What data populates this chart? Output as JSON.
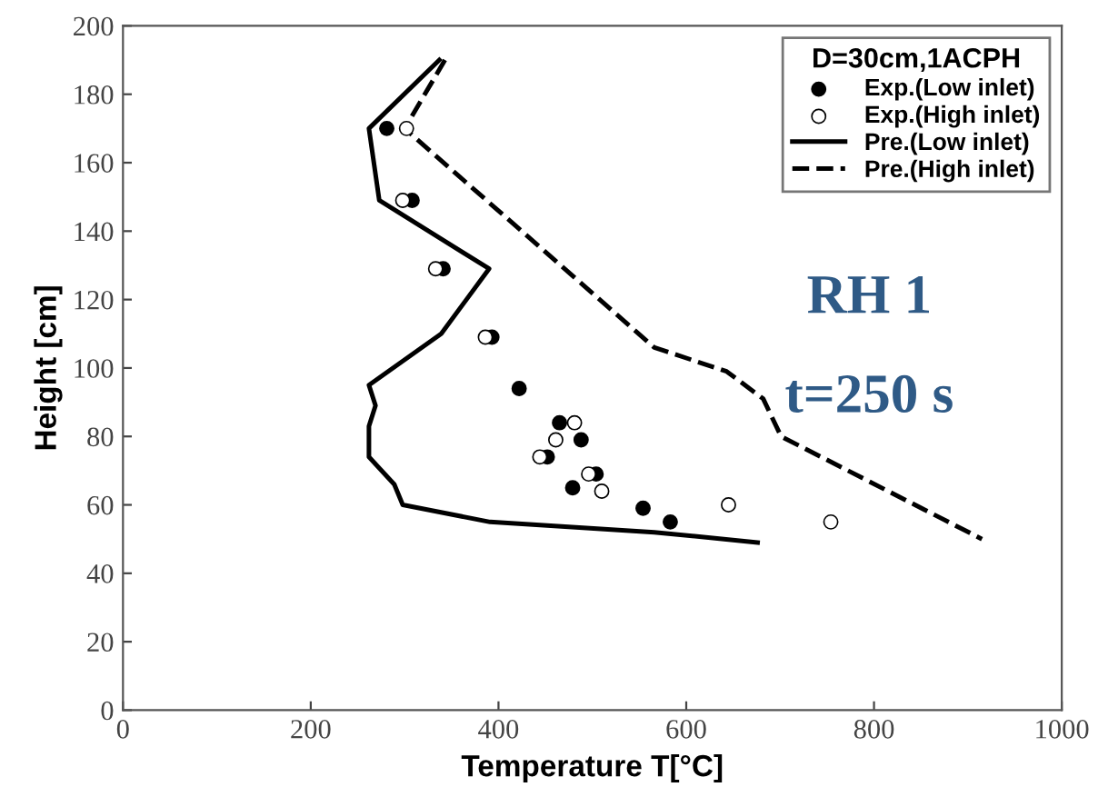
{
  "chart_data": {
    "type": "line",
    "xlabel": "Temperature T[°C]",
    "ylabel": "Height [cm]",
    "legend_title": "D=30cm,1ACPH",
    "legend": "top right",
    "xlim": [
      0,
      1000
    ],
    "ylim": [
      0,
      200
    ],
    "xticks": [
      0,
      200,
      400,
      600,
      800,
      1000
    ],
    "yticks": [
      0,
      20,
      40,
      60,
      80,
      100,
      120,
      140,
      160,
      180,
      200
    ],
    "grid": false,
    "series": [
      {
        "name": "Exp.(Low inlet)",
        "type": "scatter",
        "marker": "circle",
        "color": "#000000",
        "x": [
          281,
          308,
          341,
          393,
          422,
          465,
          488,
          452,
          504,
          479,
          554,
          583
        ],
        "values": [
          170,
          149,
          129,
          109,
          94,
          84,
          79,
          74,
          69,
          65,
          59,
          55
        ]
      },
      {
        "name": "Exp.(High inlet)",
        "type": "scatter",
        "marker": "circle",
        "color": "#ffffff",
        "x": [
          302,
          298,
          333,
          386,
          481,
          461,
          444,
          496,
          510,
          645,
          754
        ],
        "values": [
          170,
          149,
          129,
          109,
          84,
          79,
          74,
          69,
          64,
          60,
          55
        ]
      },
      {
        "name": "Pre.(Low inlet)",
        "line_style": "solid",
        "color": "#000000",
        "x": [
          337,
          262,
          273,
          390,
          339,
          262,
          269,
          262,
          262,
          289,
          298,
          391,
          566,
          676
        ],
        "values": [
          190,
          170,
          149,
          129,
          110,
          95,
          89,
          83,
          74,
          66,
          60,
          55,
          52,
          49
        ]
      },
      {
        "name": "Pre.(High inlet)",
        "line_style": "dashed",
        "color": "#000000",
        "x": [
          343,
          300,
          566,
          643,
          682,
          701,
          915
        ],
        "values": [
          190,
          170,
          106,
          99,
          91,
          80,
          50
        ]
      }
    ],
    "annotations": [
      "RH 1",
      "t=250 s"
    ]
  }
}
